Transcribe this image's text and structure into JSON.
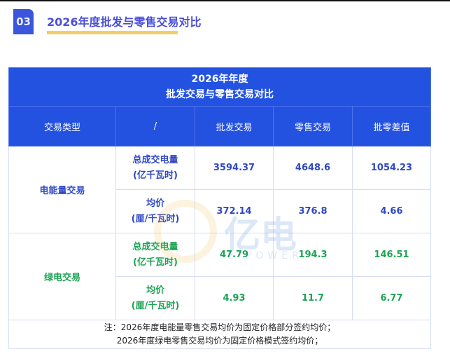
{
  "header": {
    "number": "03",
    "title": "2026年度批发与零售交易对比"
  },
  "table": {
    "caption_line1": "2026年年度",
    "caption_line2": "批发交易与零售交易对比",
    "columns": [
      "交易类型",
      "/",
      "批发交易",
      "零售交易",
      "批零差值"
    ],
    "groups": [
      {
        "type": "电能量交易",
        "rows": [
          {
            "metric": "总成交电量",
            "unit": "(亿千瓦时)",
            "wholesale": "3594.37",
            "retail": "4648.6",
            "diff": "1054.23"
          },
          {
            "metric": "均价",
            "unit": "(厘/千瓦时)",
            "wholesale": "372.14",
            "retail": "376.8",
            "diff": "4.66"
          }
        ]
      },
      {
        "type": "绿电交易",
        "rows": [
          {
            "metric": "总成交电量",
            "unit": "(亿千瓦时)",
            "wholesale": "47.79",
            "retail": "194.3",
            "diff": "146.51"
          },
          {
            "metric": "均价",
            "unit": "(厘/千瓦时)",
            "wholesale": "4.93",
            "retail": "11.7",
            "diff": "6.77"
          }
        ]
      }
    ],
    "note_line1": "注：2026年度电能量零售交易均价为固定价格部分签约均价；",
    "note_line2": "2026年度绿电零售交易均价为固定价格模式签约均价；"
  },
  "watermark": {
    "cn": "亿电",
    "en": "E-POWER"
  },
  "colors": {
    "header_blue": "#2452e0",
    "text_blue": "#3048c4",
    "text_green": "#1ca454",
    "accent_yellow": "#f3cd6b"
  }
}
